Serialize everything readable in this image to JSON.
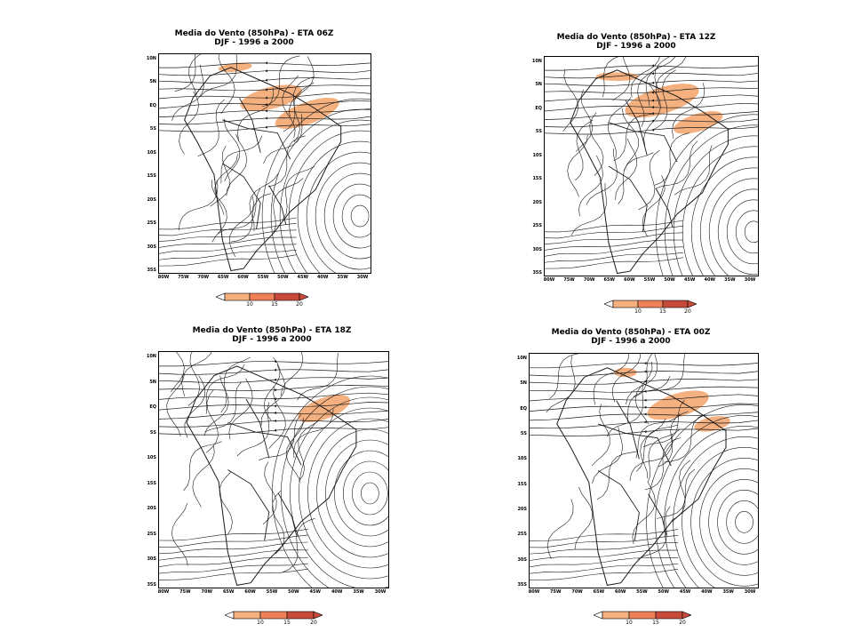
{
  "colors": {
    "shade_low": "#f4b07f",
    "shade_mid": "#f08058",
    "shade_high": "#c84a3a",
    "stream": "#1a1a1a"
  },
  "panels": [
    {
      "title1": "Media do Vento (850hPa) - ETA 06Z",
      "title2": "DJF - 1996 a 2000"
    },
    {
      "title1": "Media do Vento (850hPa) - ETA 12Z",
      "title2": "DJF - 1996 a 2000"
    },
    {
      "title1": "Media do Vento (850hPa) - ETA 18Z",
      "title2": "DJF - 1996 a 2000"
    },
    {
      "title1": "Media do Vento (850hPa) - ETA 00Z",
      "title2": "DJF - 1996 a 2000"
    }
  ],
  "y_ticks": [
    "10N",
    "5N",
    "EQ",
    "5S",
    "10S",
    "15S",
    "20S",
    "25S",
    "30S",
    "35S"
  ],
  "x_ticks": [
    "80W",
    "75W",
    "70W",
    "65W",
    "60W",
    "55W",
    "50W",
    "45W",
    "40W",
    "35W",
    "30W"
  ],
  "colorbar_ticks": [
    "10",
    "15",
    "20"
  ]
}
